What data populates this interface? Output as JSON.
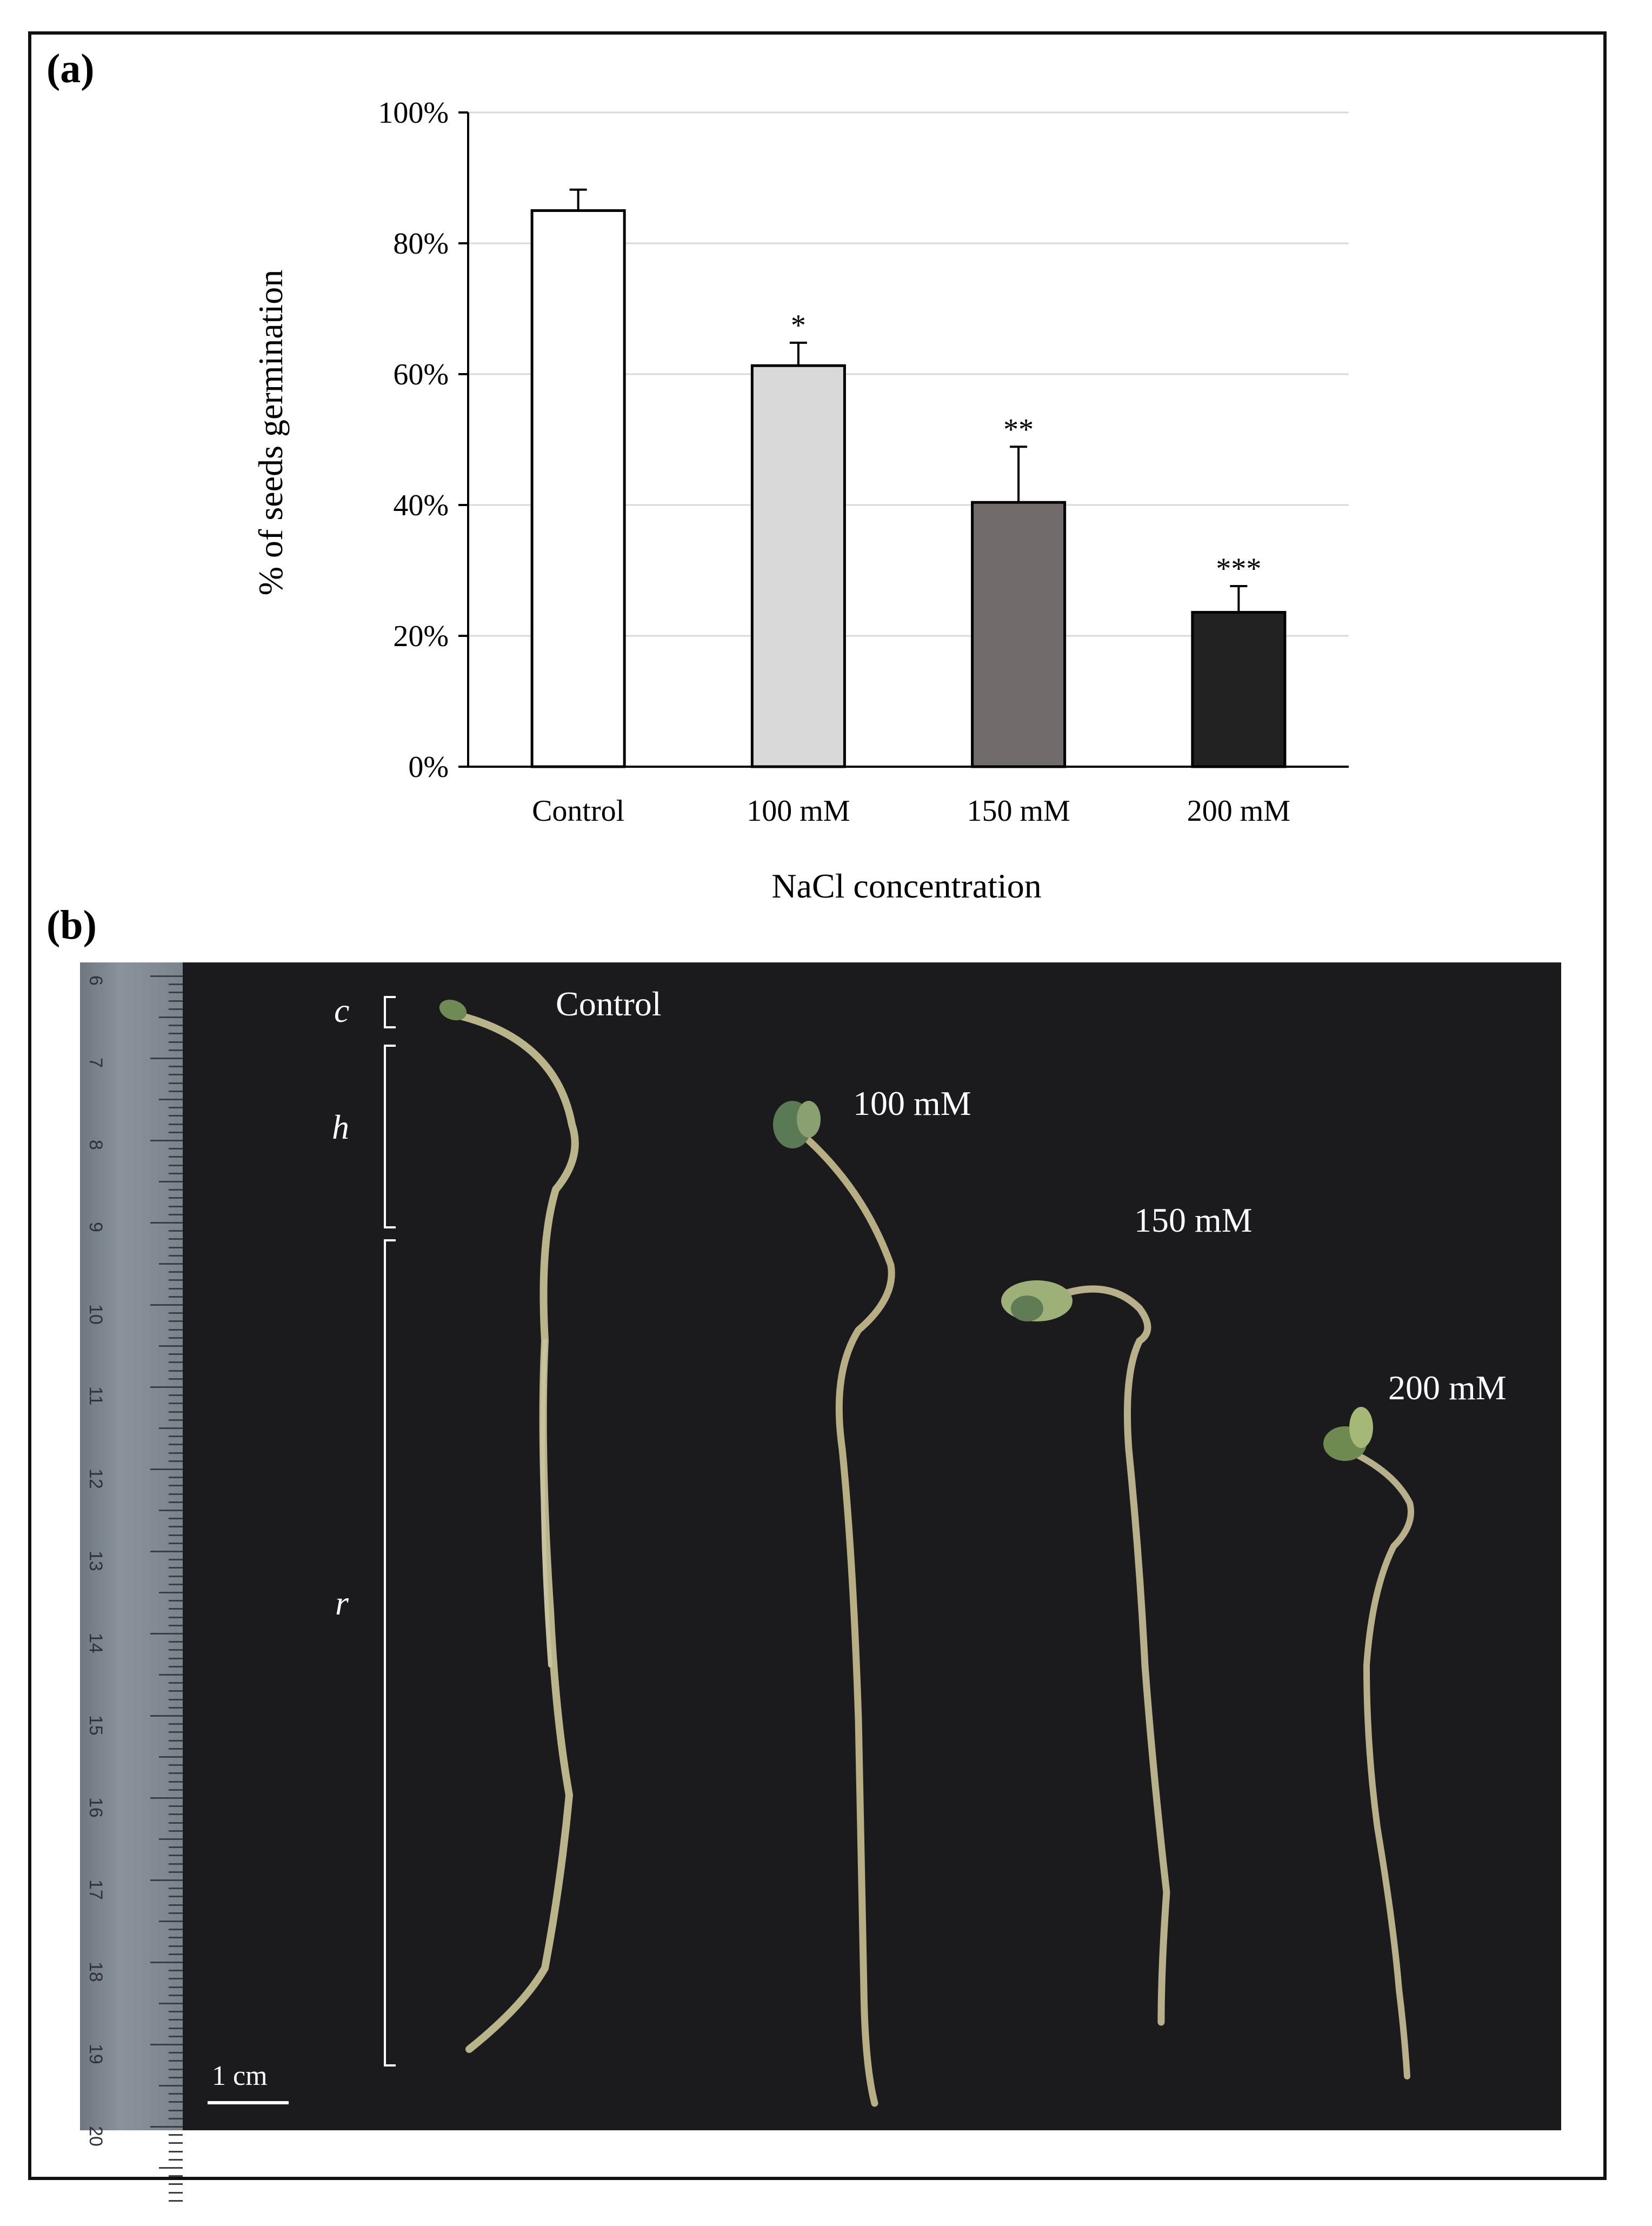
{
  "panels": {
    "a_label": "(a)",
    "b_label": "(b)"
  },
  "chart_data": {
    "type": "bar",
    "title": "",
    "xlabel": "NaCl concentration",
    "ylabel": "% of seeds germination",
    "categories": [
      "Control",
      "100 mM",
      "150 mM",
      "200 mM"
    ],
    "values": [
      85,
      61.3,
      40.4,
      23.6
    ],
    "errors": [
      3.2,
      3.5,
      8.5,
      4.0
    ],
    "significance": [
      "",
      "*",
      "**",
      "***"
    ],
    "bar_colors": [
      "#ffffff",
      "#d9d9d9",
      "#716b6b",
      "#222222"
    ],
    "ylim": [
      0,
      100
    ],
    "yticks": [
      0,
      20,
      40,
      60,
      80,
      100
    ],
    "ytick_labels": [
      "0%",
      "20%",
      "40%",
      "60%",
      "80%",
      "100%"
    ],
    "grid": true,
    "legend": "none"
  },
  "photo": {
    "labels": [
      "Control",
      "100 mM",
      "150 mM",
      "200 mM"
    ],
    "parts": {
      "cotyledon": "c",
      "hypocotyl": "h",
      "root": "r"
    },
    "scale_bar": "1 cm",
    "ruler_numbers": [
      "6",
      "7",
      "8",
      "9",
      "10",
      "11",
      "12",
      "13",
      "14",
      "15",
      "16",
      "17",
      "18",
      "19",
      "20"
    ]
  }
}
